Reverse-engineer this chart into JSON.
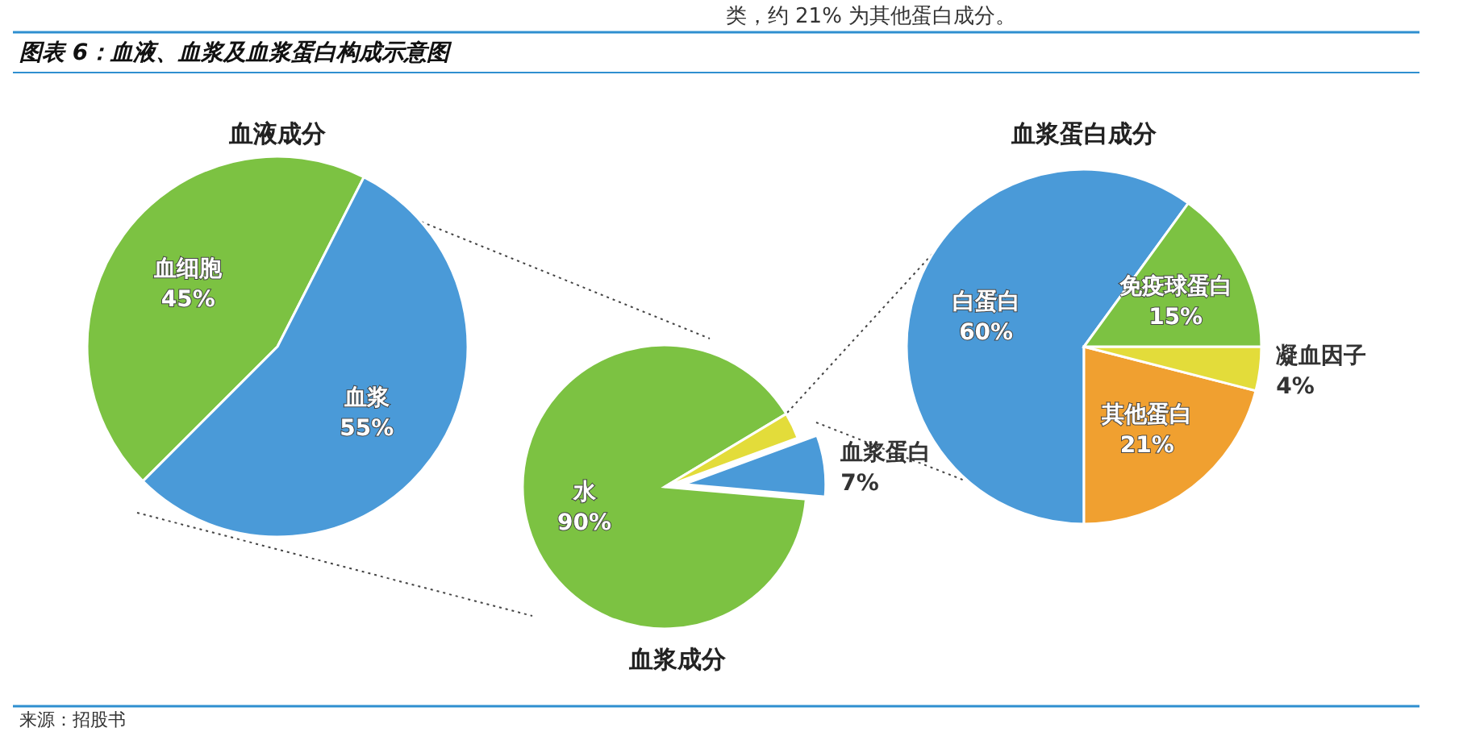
{
  "chart_data": [
    {
      "type": "other",
      "title": "图表 6：血液、血浆及血浆蛋白构成示意图",
      "annotations": [
        "类，约 21% 为其他蛋白成分。",
        "来源：招股书"
      ]
    },
    {
      "type": "pie",
      "title": "血液成分",
      "categories": [
        "血细胞",
        "血浆"
      ],
      "values": [
        45,
        55
      ],
      "colors": [
        "#7cc242",
        "#4a9ad8"
      ],
      "value_labels": [
        "45%",
        "55%"
      ]
    },
    {
      "type": "pie",
      "title": "血浆成分",
      "categories": [
        "水",
        null,
        "血浆蛋白"
      ],
      "values": [
        90,
        3,
        7
      ],
      "colors": [
        "#7cc242",
        "#e3dc3a",
        "#4a9ad8"
      ],
      "value_labels": [
        "90%",
        null,
        "7%"
      ]
    },
    {
      "type": "pie",
      "title": "血浆蛋白成分",
      "categories": [
        "白蛋白",
        "其他蛋白",
        "凝血因子",
        "免疫球蛋白"
      ],
      "values": [
        60,
        21,
        4,
        15
      ],
      "colors": [
        "#4a9ad8",
        "#f0a030",
        "#e3dc3a",
        "#7cc242"
      ],
      "value_labels": [
        "60%",
        "21%",
        "4%",
        "15%"
      ]
    }
  ]
}
